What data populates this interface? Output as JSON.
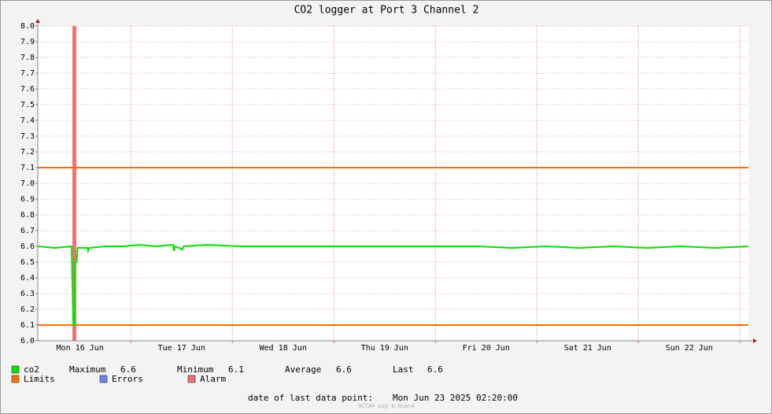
{
  "chart_data": {
    "type": "line",
    "title": "CO2 logger at Port 3 Channel 2",
    "xlim": [
      0,
      168
    ],
    "xticks": [
      {
        "value": 10,
        "label": "Mon 16 Jun"
      },
      {
        "value": 34,
        "label": "Tue 17 Jun"
      },
      {
        "value": 58,
        "label": "Wed 18 Jun"
      },
      {
        "value": 82,
        "label": "Thu 19 Jun"
      },
      {
        "value": 106,
        "label": "Fri 20 Jun"
      },
      {
        "value": 130,
        "label": "Sat 21 Jun"
      },
      {
        "value": 154,
        "label": "Sun 22 Jun"
      }
    ],
    "xgrid": [
      22,
      46,
      70,
      94,
      118,
      142,
      166
    ],
    "ylim": [
      6.0,
      8.0
    ],
    "yticks": [
      {
        "value": 6.0,
        "label": "6.0"
      },
      6.1,
      6.2,
      6.3,
      6.4,
      6.5,
      6.6,
      6.7,
      6.8,
      6.9,
      {
        "value": 7.0,
        "label": "7.0"
      },
      7.1,
      7.2,
      7.3,
      7.4,
      7.5,
      7.6,
      7.7,
      7.8,
      7.9,
      {
        "value": 8.0,
        "label": "8.0"
      }
    ],
    "grid": true,
    "x": [
      0,
      4,
      8,
      8.4,
      8.7,
      8.8,
      9.2,
      9.4,
      11.8,
      11.9,
      12.2,
      16,
      20,
      24,
      28,
      32,
      32.2,
      32.5,
      34.2,
      34.5,
      40,
      48,
      56,
      64,
      72,
      80,
      88,
      96,
      104,
      112,
      120,
      128,
      136,
      144,
      152,
      160,
      168
    ],
    "series": [
      {
        "name": "co2",
        "color": "#00e600",
        "values": [
          6.6,
          6.59,
          6.6,
          6.1,
          6.1,
          6.5,
          6.5,
          6.59,
          6.59,
          6.57,
          6.59,
          6.6,
          6.6,
          6.61,
          6.6,
          6.61,
          6.57,
          6.6,
          6.58,
          6.6,
          6.61,
          6.6,
          6.6,
          6.6,
          6.6,
          6.6,
          6.6,
          6.6,
          6.6,
          6.59,
          6.6,
          6.59,
          6.6,
          6.59,
          6.6,
          6.59,
          6.6
        ]
      }
    ],
    "limits": {
      "name": "Limits",
      "color": "#ff6a00",
      "values": [
        6.1,
        7.1
      ]
    },
    "errors": {
      "name": "Errors",
      "color": "#6f7ff0"
    },
    "alarm": {
      "name": "Alarm",
      "color": "#f07070",
      "x": [
        8.2,
        9.1
      ]
    },
    "stats": [
      {
        "label": "Maximum",
        "value": 6.6
      },
      {
        "label": "Minimum",
        "value": 6.1
      },
      {
        "label": "Average",
        "value": 6.6
      },
      {
        "label": "Last",
        "value": 6.6
      }
    ],
    "footer": {
      "label": "date of last data point:",
      "value": "Mon Jun 23 2025 02:20:00"
    },
    "watermark": "OCTA® Log & Guard"
  }
}
